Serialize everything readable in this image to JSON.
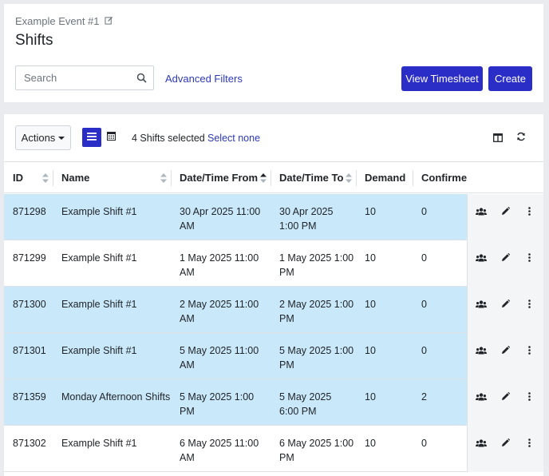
{
  "event": {
    "title": "Example Event #1"
  },
  "page": {
    "title": "Shifts"
  },
  "search": {
    "placeholder": "Search"
  },
  "filters": {
    "advanced_label": "Advanced Filters"
  },
  "buttons": {
    "timesheet": "View Timesheet",
    "create": "Create"
  },
  "toolbar": {
    "actions_label": "Actions",
    "selected_text": "4 Shifts selected",
    "select_none": "Select none"
  },
  "columns": [
    "ID",
    "Name",
    "Date/Time From",
    "Date/Time To",
    "Demand",
    "Confirme"
  ],
  "rows": [
    {
      "id": "871298",
      "name": "Example Shift #1",
      "from1": "30 Apr 2025 11:00",
      "from2": "AM",
      "to1": "30 Apr 2025",
      "to2": "1:00 PM",
      "demand": "10",
      "confirmed": "0",
      "selected": true
    },
    {
      "id": "871299",
      "name": "Example Shift #1",
      "from1": "1 May 2025 11:00",
      "from2": "AM",
      "to1": "1 May 2025 1:00",
      "to2": "PM",
      "demand": "10",
      "confirmed": "0",
      "selected": false
    },
    {
      "id": "871300",
      "name": "Example Shift #1",
      "from1": "2 May 2025 11:00",
      "from2": "AM",
      "to1": "2 May 2025 1:00",
      "to2": "PM",
      "demand": "10",
      "confirmed": "0",
      "selected": true
    },
    {
      "id": "871301",
      "name": "Example Shift #1",
      "from1": "5 May 2025 11:00",
      "from2": "AM",
      "to1": "5 May 2025 1:00",
      "to2": "PM",
      "demand": "10",
      "confirmed": "0",
      "selected": true
    },
    {
      "id": "871359",
      "name": "Monday Afternoon Shifts",
      "from1": "5 May 2025 1:00",
      "from2": "PM",
      "to1": "5 May 2025",
      "to2": "6:00 PM",
      "demand": "10",
      "confirmed": "2",
      "selected": true
    },
    {
      "id": "871302",
      "name": "Example Shift #1",
      "from1": "6 May 2025 11:00",
      "from2": "AM",
      "to1": "6 May 2025 1:00",
      "to2": "PM",
      "demand": "10",
      "confirmed": "0",
      "selected": false
    }
  ],
  "colors": {
    "primary": "#2b2dc7",
    "link": "#2d3ab8",
    "row_selected": "#c9e9fb"
  },
  "icons": [
    "edit-icon",
    "search-icon",
    "list-view-icon",
    "calendar-icon",
    "columns-icon",
    "refresh-icon",
    "users-icon",
    "pencil-icon",
    "kebab-icon"
  ]
}
